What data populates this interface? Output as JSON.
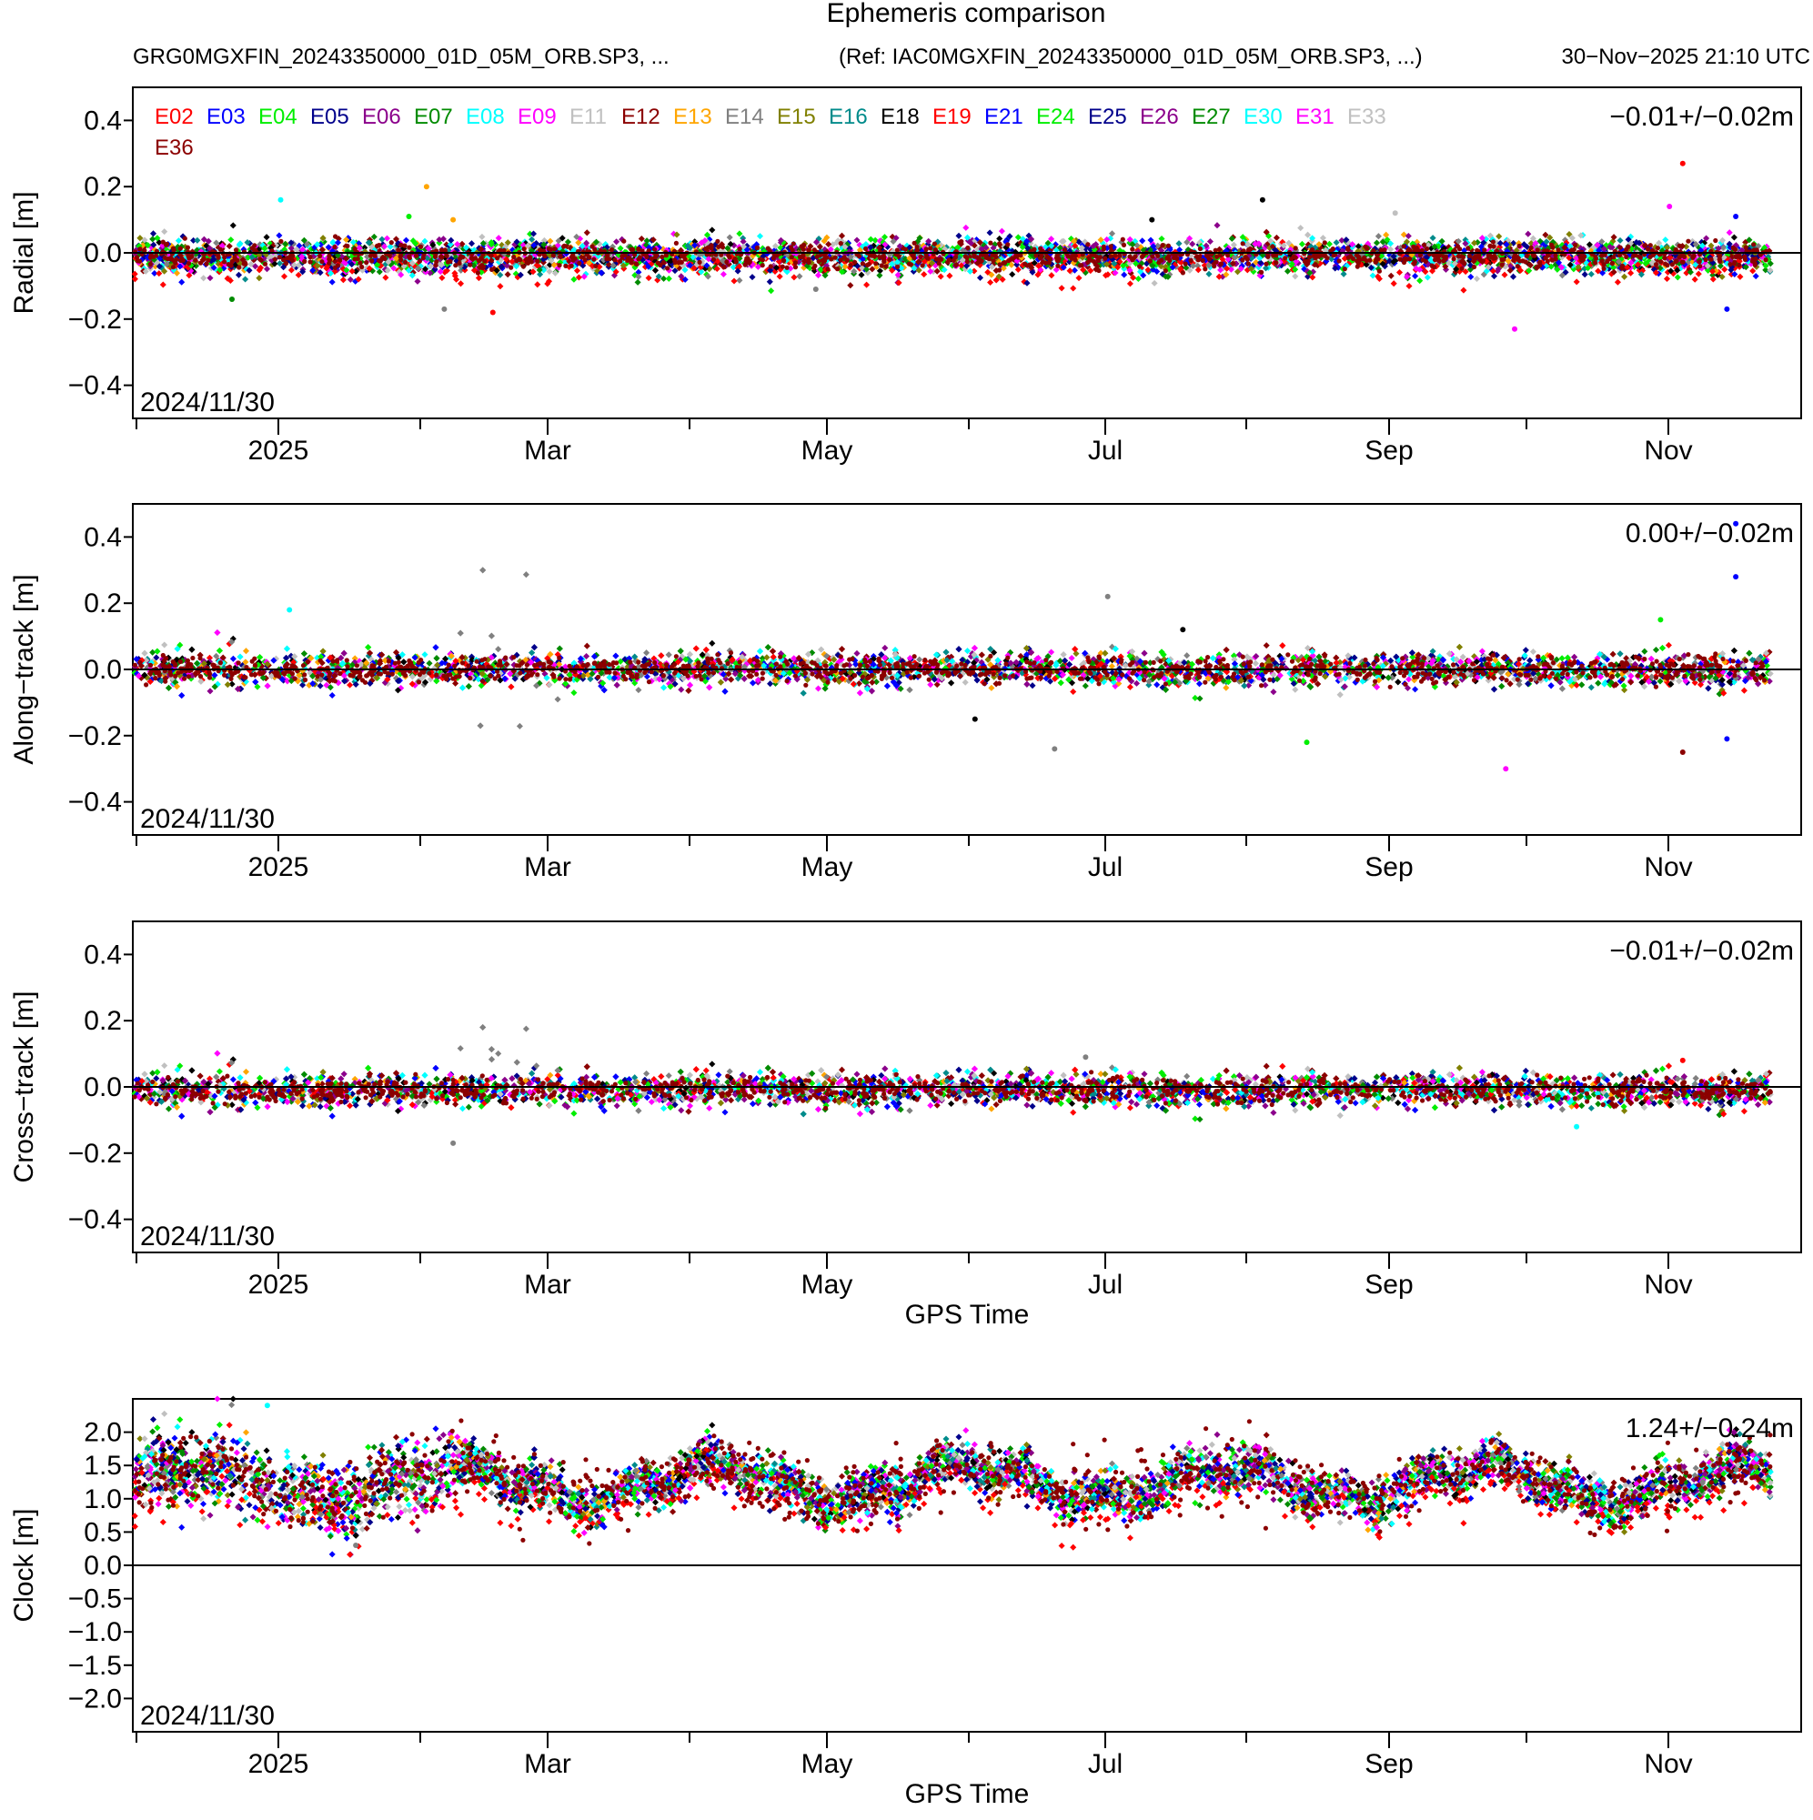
{
  "header": {
    "title": "Ephemeris comparison",
    "left": "GRG0MGXFIN_20243350000_01D_05M_ORB.SP3, ...",
    "ref": "(Ref: IAC0MGXFIN_20243350000_01D_05M_ORB.SP3, ...)",
    "timestamp": "30−Nov−2025 21:10 UTC"
  },
  "legend": {
    "satellites": [
      "E02",
      "E03",
      "E04",
      "E05",
      "E06",
      "E07",
      "E08",
      "E09",
      "E11",
      "E12",
      "E13",
      "E14",
      "E15",
      "E16",
      "E18",
      "E19",
      "E21",
      "E24",
      "E25",
      "E26",
      "E27",
      "E30",
      "E31",
      "E33",
      "E36"
    ],
    "colors": [
      "#ff0000",
      "#0000ff",
      "#00ee00",
      "#00008b",
      "#8b008b",
      "#008b00",
      "#00ffff",
      "#ff00ff",
      "#c0c0c0",
      "#8b0000",
      "#ffa500",
      "#808080",
      "#808000",
      "#008b8b",
      "#000000",
      "#ff0000",
      "#0000ff",
      "#00ee00",
      "#00008b",
      "#8b008b",
      "#008b00",
      "#00ffff",
      "#ff00ff",
      "#c0c0c0",
      "#8b0000"
    ]
  },
  "x_axis": {
    "ticks": [
      "2025",
      "Mar",
      "May",
      "Jul",
      "Sep",
      "Nov"
    ],
    "title": "GPS Time",
    "start_date": "2024/11/30"
  },
  "chart_data": [
    {
      "type": "scatter",
      "title": "Radial",
      "ylabel": "Radial [m]",
      "stat": "−0.01+/−0.02m",
      "date_label": "2024/11/30",
      "ylim": [
        -0.5,
        0.5
      ],
      "yticks": [
        0.4,
        0.2,
        0.0,
        -0.2,
        -0.4
      ],
      "ytick_labels": [
        "0.4",
        "0.2",
        "0.0",
        "−0.2",
        "−0.4"
      ],
      "mean": -0.01,
      "std": 0.02,
      "outliers": [
        [
          0.33,
          0.16,
          "#00ffff"
        ],
        [
          0.66,
          0.2,
          "#ffa500"
        ],
        [
          0.62,
          0.11,
          "#00ee00"
        ],
        [
          0.72,
          0.1,
          "#ffa500"
        ],
        [
          0.22,
          -0.14,
          "#008b00"
        ],
        [
          0.7,
          -0.17,
          "#808080"
        ],
        [
          0.81,
          -0.18,
          "#ff0000"
        ],
        [
          1.54,
          -0.11,
          "#808080"
        ],
        [
          2.55,
          0.16,
          "#000000"
        ],
        [
          2.85,
          0.12,
          "#c0c0c0"
        ],
        [
          3.12,
          -0.23,
          "#ff00ff"
        ],
        [
          3.5,
          0.27,
          "#ff0000"
        ],
        [
          3.62,
          0.11,
          "#0000ff"
        ],
        [
          3.47,
          0.14,
          "#ff00ff"
        ],
        [
          3.6,
          -0.17,
          "#0000ff"
        ],
        [
          2.3,
          0.1,
          "#000000"
        ]
      ]
    },
    {
      "type": "scatter",
      "title": "Along-track",
      "ylabel": "Along−track [m]",
      "stat": "0.00+/−0.02m",
      "date_label": "2024/11/30",
      "ylim": [
        -0.5,
        0.5
      ],
      "yticks": [
        0.4,
        0.2,
        0.0,
        -0.2,
        -0.4
      ],
      "ytick_labels": [
        "0.4",
        "0.2",
        "0.0",
        "−0.2",
        "−0.4"
      ],
      "mean": 0.0,
      "std": 0.02,
      "outliers": [
        [
          0.35,
          0.18,
          "#00ffff"
        ],
        [
          2.2,
          0.22,
          "#808080"
        ],
        [
          2.08,
          -0.24,
          "#808080"
        ],
        [
          2.65,
          -0.22,
          "#00ee00"
        ],
        [
          3.1,
          -0.3,
          "#ff00ff"
        ],
        [
          3.45,
          0.15,
          "#00ee00"
        ],
        [
          3.5,
          -0.25,
          "#8b0000"
        ],
        [
          3.62,
          0.44,
          "#0000ff"
        ],
        [
          3.62,
          0.28,
          "#0000ff"
        ],
        [
          3.6,
          -0.21,
          "#0000ff"
        ],
        [
          1.9,
          -0.15,
          "#000000"
        ],
        [
          2.37,
          0.12,
          "#000000"
        ]
      ]
    },
    {
      "type": "scatter",
      "title": "Cross-track",
      "ylabel": "Cross−track [m]",
      "stat": "−0.01+/−0.02m",
      "date_label": "2024/11/30",
      "ylim": [
        -0.5,
        0.5
      ],
      "yticks": [
        0.4,
        0.2,
        0.0,
        -0.2,
        -0.4
      ],
      "ytick_labels": [
        "0.4",
        "0.2",
        "0.0",
        "−0.2",
        "−0.4"
      ],
      "mean": -0.01,
      "std": 0.02,
      "outliers": [
        [
          0.72,
          -0.17,
          "#808080"
        ],
        [
          3.26,
          -0.12,
          "#00ffff"
        ],
        [
          2.15,
          0.09,
          "#808080"
        ],
        [
          3.5,
          0.08,
          "#ff0000"
        ]
      ]
    },
    {
      "type": "scatter",
      "title": "Clock",
      "ylabel": "Clock [m]",
      "stat": "1.24+/−0.24m",
      "date_label": "2024/11/30",
      "ylim": [
        -2.5,
        2.5
      ],
      "yticks": [
        2.0,
        1.5,
        1.0,
        0.5,
        0.0,
        -0.5,
        -1.0,
        -1.5,
        -2.0
      ],
      "ytick_labels": [
        "2.0",
        "1.5",
        "1.0",
        "0.5",
        "0.0",
        "−0.5",
        "−1.0",
        "−1.5",
        "−2.0"
      ],
      "mean": 1.24,
      "std": 0.24,
      "outliers": [
        [
          0.3,
          2.4,
          "#00ffff"
        ],
        [
          0.5,
          0.3,
          "#808080"
        ]
      ]
    }
  ]
}
